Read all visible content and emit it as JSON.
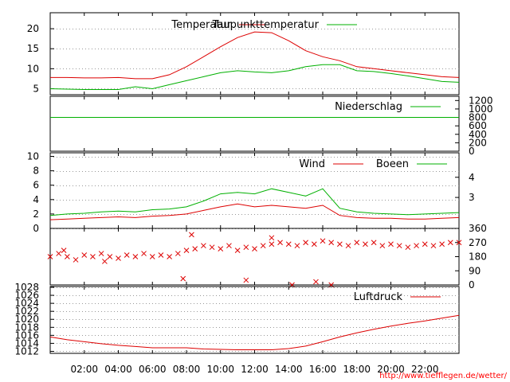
{
  "footer_url": "http://www.tiefflegen.de/wetter/",
  "colors": {
    "red": "#dd0000",
    "green": "#00b000",
    "grid": "#999999"
  },
  "x_axis": {
    "min_hours": 0,
    "max_hours": 24,
    "tick_labels": [
      "02:00",
      "04:00",
      "06:00",
      "08:00",
      "10:00",
      "12:00",
      "14:00",
      "16:00",
      "18:00",
      "20:00",
      "22:00"
    ],
    "tick_hours": [
      2,
      4,
      6,
      8,
      10,
      12,
      14,
      16,
      18,
      20,
      22
    ]
  },
  "chart_data": [
    {
      "type": "line",
      "panel": "temperature",
      "ylim": [
        3.5,
        24
      ],
      "yticks_left": [
        "5",
        "10",
        "15",
        "20"
      ],
      "yticks_left_values": [
        5,
        10,
        15,
        20
      ],
      "grid": true,
      "series": [
        {
          "name": "Temperatur",
          "color": "#dd0000",
          "x": [
            0,
            1,
            2,
            3,
            4,
            5,
            6,
            7,
            8,
            9,
            10,
            11,
            12,
            13,
            14,
            15,
            16,
            17,
            18,
            19,
            20,
            21,
            22,
            23,
            24
          ],
          "y": [
            7.8,
            7.8,
            7.7,
            7.7,
            7.8,
            7.5,
            7.5,
            8.5,
            10.5,
            13,
            15.5,
            17.8,
            19.2,
            19,
            17,
            14.5,
            13,
            12,
            10.5,
            10,
            9.5,
            9,
            8.5,
            8,
            7.8
          ]
        },
        {
          "name": "Taupunkttemperatur",
          "color": "#00b000",
          "x": [
            0,
            1,
            2,
            3,
            4,
            5,
            6,
            7,
            8,
            9,
            10,
            11,
            12,
            13,
            14,
            15,
            16,
            17,
            18,
            19,
            20,
            21,
            22,
            23,
            24
          ],
          "y": [
            5,
            4.9,
            4.8,
            4.8,
            4.8,
            5.5,
            5,
            6,
            7,
            8,
            9,
            9.5,
            9.2,
            9,
            9.5,
            10.5,
            11,
            11,
            9.5,
            9.3,
            8.8,
            8.2,
            7.5,
            6.8,
            6.6
          ]
        }
      ]
    },
    {
      "type": "line",
      "panel": "precipitation",
      "ylim": [
        0,
        1300
      ],
      "yticks_right": [
        "0",
        "200",
        "400",
        "600",
        "800",
        "1000",
        "1200"
      ],
      "yticks_right_values": [
        0,
        200,
        400,
        600,
        800,
        1000,
        1200
      ],
      "grid": false,
      "series": [
        {
          "name": "Niederschlag",
          "color": "#00b000",
          "x": [
            0,
            24
          ],
          "y": [
            800,
            800
          ]
        }
      ]
    },
    {
      "type": "line",
      "panel": "wind",
      "ylim": [
        0,
        10.5
      ],
      "yticks_left": [
        "0",
        "2",
        "4",
        "6",
        "8",
        "10"
      ],
      "yticks_left_values": [
        0,
        2,
        4,
        6,
        8,
        10
      ],
      "yticks_right": [
        "3",
        "4"
      ],
      "yticks_right_values": [
        4.3,
        7.1
      ],
      "grid": true,
      "series": [
        {
          "name": "Wind",
          "color": "#dd0000",
          "x": [
            0,
            1,
            2,
            3,
            4,
            5,
            6,
            7,
            8,
            9,
            10,
            11,
            12,
            13,
            14,
            15,
            16,
            17,
            18,
            19,
            20,
            21,
            22,
            23,
            24
          ],
          "y": [
            1.2,
            1.3,
            1.4,
            1.5,
            1.6,
            1.5,
            1.7,
            1.8,
            2.0,
            2.5,
            3.0,
            3.4,
            3.0,
            3.2,
            3.0,
            2.8,
            3.2,
            1.8,
            1.5,
            1.4,
            1.4,
            1.3,
            1.3,
            1.4,
            1.5
          ]
        },
        {
          "name": "Boeen",
          "color": "#00b000",
          "x": [
            0,
            1,
            2,
            3,
            4,
            5,
            6,
            7,
            8,
            9,
            10,
            11,
            12,
            13,
            14,
            15,
            16,
            17,
            18,
            19,
            20,
            21,
            22,
            23,
            24
          ],
          "y": [
            1.8,
            2.0,
            2.1,
            2.3,
            2.4,
            2.3,
            2.6,
            2.7,
            3.0,
            3.8,
            4.8,
            5.0,
            4.8,
            5.5,
            5.0,
            4.5,
            5.5,
            2.8,
            2.3,
            2.1,
            2.0,
            1.9,
            2.0,
            2.1,
            2.2
          ]
        }
      ]
    },
    {
      "type": "scatter",
      "panel": "wind_direction",
      "ylim": [
        0,
        360
      ],
      "yticks_right": [
        "0",
        "90",
        "180",
        "270",
        "360"
      ],
      "yticks_right_values": [
        0,
        90,
        180,
        270,
        360
      ],
      "marker": "x",
      "series": [
        {
          "color": "#dd0000",
          "x": [
            0,
            0.5,
            1,
            1.5,
            2,
            2.5,
            3,
            3.5,
            4,
            4.5,
            5,
            5.5,
            6,
            6.5,
            7,
            7.5,
            8,
            8.5,
            9,
            9.5,
            10,
            10.5,
            11,
            11.5,
            12,
            12.5,
            13,
            13.5,
            14,
            14.5,
            15,
            15.5,
            16,
            16.5,
            17,
            17.5,
            18,
            18.5,
            19,
            19.5,
            20,
            20.5,
            21,
            21.5,
            22,
            22.5,
            23,
            23.5,
            24,
            0.8,
            3.2,
            7.8,
            11.5,
            14.2,
            16.5,
            8.3,
            13,
            15.6
          ],
          "y": [
            180,
            200,
            180,
            160,
            190,
            180,
            200,
            180,
            170,
            190,
            180,
            200,
            180,
            190,
            180,
            200,
            220,
            230,
            250,
            240,
            230,
            250,
            220,
            240,
            230,
            250,
            260,
            270,
            260,
            250,
            270,
            260,
            280,
            270,
            260,
            250,
            270,
            260,
            270,
            250,
            260,
            250,
            240,
            250,
            260,
            250,
            260,
            270,
            270,
            220,
            150,
            40,
            30,
            0,
            0,
            320,
            300,
            20
          ]
        }
      ]
    },
    {
      "type": "line",
      "panel": "pressure",
      "ylim": [
        1011.5,
        1028.2
      ],
      "yticks_left": [
        "1012",
        "1014",
        "1016",
        "1018",
        "1020",
        "1022",
        "1024",
        "1026",
        "1028"
      ],
      "yticks_left_values": [
        1012,
        1014,
        1016,
        1018,
        1020,
        1022,
        1024,
        1026,
        1028
      ],
      "grid": true,
      "series": [
        {
          "name": "Luftdruck",
          "color": "#dd0000",
          "x": [
            0,
            1,
            2,
            3,
            4,
            5,
            6,
            7,
            8,
            9,
            10,
            11,
            12,
            13,
            14,
            15,
            16,
            17,
            18,
            19,
            20,
            21,
            22,
            23,
            24
          ],
          "y": [
            1015.6,
            1014.9,
            1014.4,
            1013.9,
            1013.5,
            1013.2,
            1012.9,
            1012.9,
            1012.9,
            1012.6,
            1012.5,
            1012.4,
            1012.4,
            1012.4,
            1012.7,
            1013.3,
            1014.4,
            1015.6,
            1016.6,
            1017.5,
            1018.3,
            1019.0,
            1019.6,
            1020.3,
            1021.0
          ]
        }
      ]
    }
  ]
}
